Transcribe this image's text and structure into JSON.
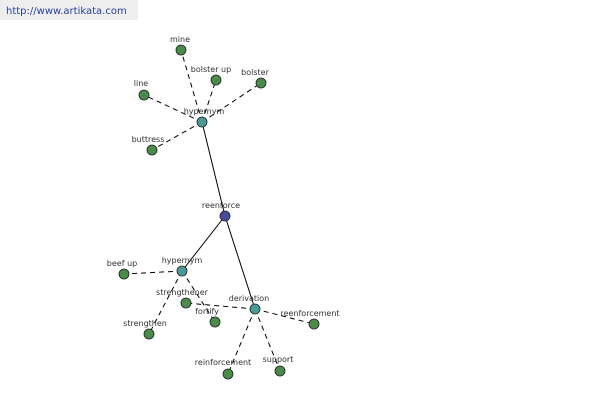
{
  "header": {
    "url": "http://www.artikata.com"
  },
  "nodes": [
    {
      "label": "reenforce"
    },
    {
      "label": "hypernym"
    },
    {
      "label": "mine"
    },
    {
      "label": "bolster up"
    },
    {
      "label": "bolster"
    },
    {
      "label": "line"
    },
    {
      "label": "buttress"
    },
    {
      "label": "hypernym"
    },
    {
      "label": "beef up"
    },
    {
      "label": "strengthener"
    },
    {
      "label": "strengthen"
    },
    {
      "label": "fortify"
    },
    {
      "label": "derivation"
    },
    {
      "label": "reenforcement"
    },
    {
      "label": "reinforcement"
    },
    {
      "label": "support"
    }
  ]
}
